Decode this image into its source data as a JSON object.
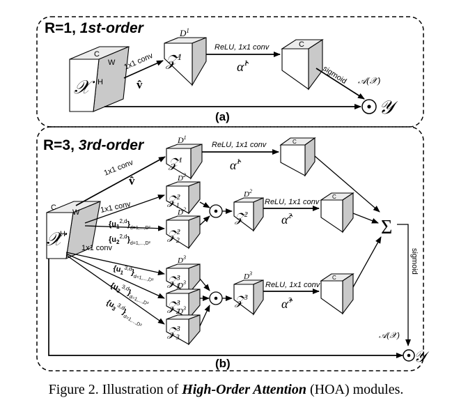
{
  "panel_a": {
    "title_prefix": "R=1, ",
    "title_order": "1st-order",
    "label": "(a)",
    "input": {
      "symbol": "𝒳",
      "c": "C",
      "w": "W",
      "h": "H"
    },
    "conv": "1x1 conv",
    "v_hat": "v̂",
    "z_symbol": "𝒵",
    "z_sup": "1",
    "d_label": "D",
    "d_sup": "1",
    "relu_label": "ReLU, 1x1 conv",
    "alpha": "α̂",
    "alpha_sup": "1",
    "out_c": "C",
    "sigmoid": "sigmoid",
    "attn": "𝒜(𝒳)",
    "odot": "⊙",
    "output": "𝒴"
  },
  "panel_b": {
    "title_prefix": "R=3, ",
    "title_order": "3rd-order",
    "label": "(b)",
    "input": {
      "symbol": "𝒳",
      "c": "C",
      "w": "W",
      "h": "H"
    },
    "conv1": "1x1 conv",
    "conv2": "1x1 conv",
    "conv3": "1x1 conv",
    "v_hat": "v̂",
    "branch1": {
      "z_sup": "1",
      "d_sup": "1",
      "relu": "ReLU, 1x1 conv",
      "alpha_sup": "1",
      "c": "C"
    },
    "branch2": {
      "z1": "1",
      "z2": "2",
      "d_sup": "2",
      "zp_sup": "2",
      "zp_d": "2",
      "u1_text": "{u",
      "u1_sub": "1",
      "u1_sup": "2,d",
      "u1_tail": "}",
      "u1_range": "d=1,...,D²",
      "u2_text": "{u",
      "u2_sub": "2",
      "u2_sup": "2,d",
      "u2_tail": "}",
      "u2_range": "d=1,...,D²",
      "relu": "ReLU, 1x1 conv",
      "alpha_sup": "2",
      "c": "C"
    },
    "branch3": {
      "z1": "1",
      "z2": "2",
      "z3": "3",
      "d_sup": "3",
      "zp_sup": "3",
      "zp_d": "3",
      "u1_text": "{u",
      "u1_sub": "1",
      "u1_sup": "3,d",
      "u1_tail": "}",
      "u1_range": "d=1,...,D³",
      "u2_text": "{u",
      "u2_sub": "2",
      "u2_sup": "3,d",
      "u2_tail": "}",
      "u2_range": "d=1,...,D³",
      "u3_text": "{u",
      "u3_sub": "3",
      "u3_sup": "3,d",
      "u3_tail": "}",
      "u3_range": "d=1,...,D³",
      "relu": "ReLU, 1x1 conv",
      "alpha_sup": "3",
      "c": "C"
    },
    "z_symbol": "𝒵",
    "d_label": "D",
    "alpha": "α̂",
    "sum": "Σ",
    "sigmoid": "sigmoid",
    "attn": "𝒜(𝒳)",
    "odot": "⊙",
    "output": "𝒴"
  },
  "caption": {
    "prefix": "Figure 2. Illustration of ",
    "emph": "High-Order Attention",
    "suffix": " (HOA) modules."
  }
}
